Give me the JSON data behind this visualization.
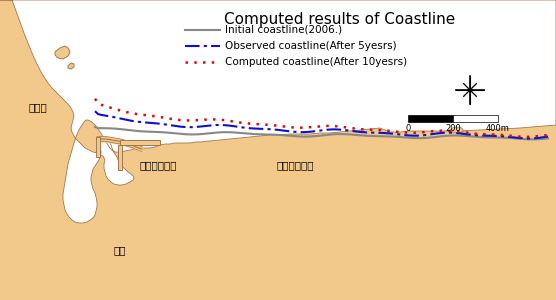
{
  "title": "Computed results of Coastline",
  "bg_color": "#F2C98B",
  "land_color": "#F2C98B",
  "sea_color": "#FFFFFF",
  "border_color": "#A07850",
  "legend_entries": [
    {
      "label": "Initial coastline(2006.)",
      "color": "#888888",
      "linestyle": "-",
      "linewidth": 1.5
    },
    {
      "label": "Observed coastline(After 5yesrs)",
      "color": "#1010CC",
      "linestyle": "-.",
      "linewidth": 1.5
    },
    {
      "label": "Computed coastline(After 10yesrs)",
      "color": "#CC1010",
      "linestyle": ":",
      "linewidth": 1.8
    }
  ],
  "labels": {
    "gungchon_hang": "궁촌항",
    "gungchon_beach": "궁촌해수욕장",
    "wonpyeong_beach": "원평해수욕장",
    "chucheon": "추천"
  },
  "title_fontsize": 11,
  "label_fontsize": 7.5
}
